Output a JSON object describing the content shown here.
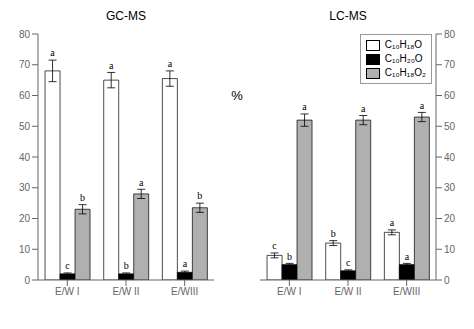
{
  "chart_data": [
    {
      "type": "bar",
      "title": "GC-MS",
      "ylabel": "%",
      "categories": [
        "E/W I",
        "E/W II",
        "E/WIII"
      ],
      "series": [
        {
          "name": "C₁₀H₁₈O",
          "color": "#ffffff",
          "values": [
            68.0,
            65.0,
            65.5
          ],
          "errors": [
            3.5,
            2.5,
            2.5
          ],
          "letters": [
            "a",
            "a",
            "a"
          ]
        },
        {
          "name": "C₁₀H₂₀O",
          "color": "#000000",
          "values": [
            2.0,
            2.0,
            2.5
          ],
          "errors": [
            0.3,
            0.3,
            0.4
          ],
          "letters": [
            "c",
            "b",
            "a"
          ]
        },
        {
          "name": "C₁₀H₁₈O₂",
          "color": "#b0b0b0",
          "values": [
            23.0,
            28.0,
            23.5
          ],
          "errors": [
            1.5,
            1.5,
            1.5
          ],
          "letters": [
            "b",
            "a",
            "b"
          ]
        }
      ],
      "ylim": [
        0,
        80
      ],
      "yticks": [
        0,
        10,
        20,
        30,
        40,
        50,
        60,
        70,
        80
      ]
    },
    {
      "type": "bar",
      "title": "LC-MS",
      "categories": [
        "E/W I",
        "E/W II",
        "E/WIII"
      ],
      "series": [
        {
          "name": "C₁₀H₁₈O",
          "color": "#ffffff",
          "values": [
            8.0,
            12.0,
            15.5
          ],
          "errors": [
            0.8,
            0.8,
            0.8
          ],
          "letters": [
            "c",
            "b",
            "a"
          ]
        },
        {
          "name": "C₁₀H₂₀O",
          "color": "#000000",
          "values": [
            5.0,
            3.0,
            5.0
          ],
          "errors": [
            0.4,
            0.3,
            0.4
          ],
          "letters": [
            "b",
            "c",
            "a"
          ]
        },
        {
          "name": "C₁₀H₁₈O₂",
          "color": "#b0b0b0",
          "values": [
            52.0,
            52.0,
            53.0
          ],
          "errors": [
            2.0,
            1.5,
            1.5
          ],
          "letters": [
            "a",
            "a",
            "a"
          ]
        }
      ],
      "ylim": [
        0,
        80
      ],
      "yticks": [
        0,
        10,
        20,
        30,
        40,
        50,
        60,
        70,
        80
      ],
      "legend": "upper right"
    }
  ]
}
